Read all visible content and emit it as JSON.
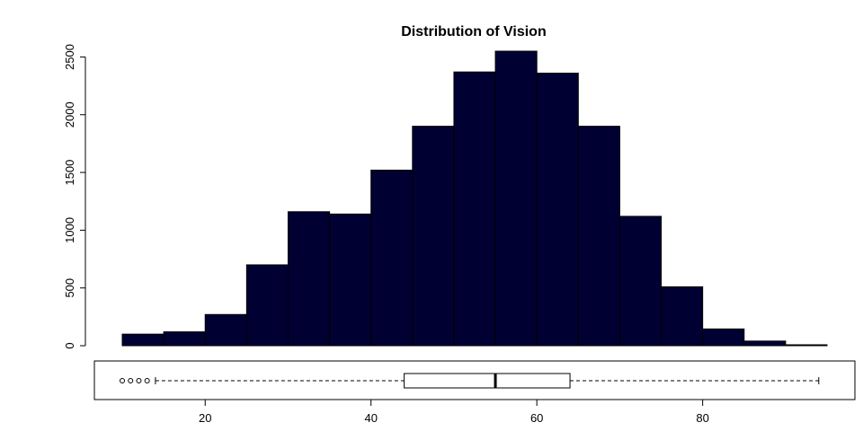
{
  "chart_data": {
    "type": "histogram",
    "title": "Distribution of Vision",
    "xlabel": "",
    "ylabel": "",
    "bar_color": "#000033",
    "bins": [
      {
        "from": 10,
        "to": 15,
        "count": 100
      },
      {
        "from": 15,
        "to": 20,
        "count": 120
      },
      {
        "from": 20,
        "to": 25,
        "count": 270
      },
      {
        "from": 25,
        "to": 30,
        "count": 700
      },
      {
        "from": 30,
        "to": 35,
        "count": 1160
      },
      {
        "from": 35,
        "to": 40,
        "count": 1140
      },
      {
        "from": 40,
        "to": 45,
        "count": 1520
      },
      {
        "from": 45,
        "to": 50,
        "count": 1900
      },
      {
        "from": 50,
        "to": 55,
        "count": 2370
      },
      {
        "from": 55,
        "to": 60,
        "count": 2550
      },
      {
        "from": 60,
        "to": 65,
        "count": 2360
      },
      {
        "from": 65,
        "to": 70,
        "count": 1900
      },
      {
        "from": 70,
        "to": 75,
        "count": 1120
      },
      {
        "from": 75,
        "to": 80,
        "count": 510
      },
      {
        "from": 80,
        "to": 85,
        "count": 145
      },
      {
        "from": 85,
        "to": 90,
        "count": 40
      },
      {
        "from": 90,
        "to": 95,
        "count": 8
      }
    ],
    "xlim": [
      10,
      95
    ],
    "ylim": [
      0,
      2550
    ],
    "x_ticks": [
      "20",
      "40",
      "60",
      "80"
    ],
    "y_ticks": [
      "0",
      "500",
      "1000",
      "1500",
      "2000",
      "2500"
    ],
    "boxplot": {
      "whisker_low": 14,
      "q1": 44,
      "median": 55,
      "q3": 64,
      "whisker_high": 94,
      "outliers": [
        10,
        11,
        12,
        13
      ]
    }
  }
}
